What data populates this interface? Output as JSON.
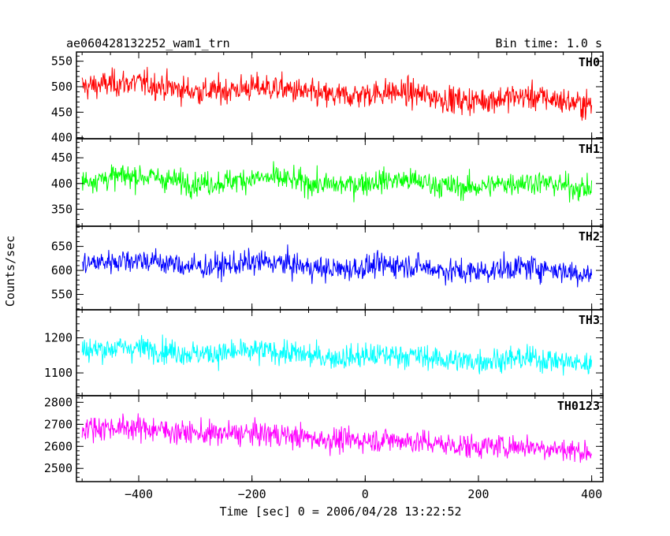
{
  "chart_data": {
    "type": "line",
    "title": "ae060428132252_wam1_trn",
    "subtitle": "Bin time: 1.0 s",
    "xlabel": "Time [sec] 0 = 2006/04/28 13:22:52",
    "ylabel": "Counts/sec",
    "xlim": [
      -510,
      420
    ],
    "x_range": [
      -500,
      400
    ],
    "x_ticks": [
      -400,
      -200,
      0,
      200,
      400
    ],
    "x_tick_labels": [
      "−400",
      "−200",
      "0",
      "200",
      "400"
    ],
    "bin_time": 1.0,
    "grid": false,
    "panels": [
      {
        "name": "TH0",
        "color": "#ff0000",
        "ylim": [
          398,
          568
        ],
        "y_ticks": [
          400,
          450,
          500,
          550
        ],
        "y_tick_labels": [
          "400",
          "450",
          "500",
          "550"
        ],
        "start": 505,
        "end": 470,
        "noise": 25
      },
      {
        "name": "TH1",
        "color": "#00ff00",
        "ylim": [
          317,
          487
        ],
        "y_ticks": [
          350,
          400,
          450
        ],
        "y_tick_labels": [
          "350",
          "400",
          "450"
        ],
        "start": 410,
        "end": 395,
        "noise": 22
      },
      {
        "name": "TH2",
        "color": "#0000ff",
        "ylim": [
          518,
          692
        ],
        "y_ticks": [
          550,
          600,
          650
        ],
        "y_tick_labels": [
          "550",
          "600",
          "650"
        ],
        "start": 618,
        "end": 598,
        "noise": 24
      },
      {
        "name": "TH3",
        "color": "#00ffff",
        "ylim": [
          1035,
          1280
        ],
        "y_ticks": [
          1100,
          1200
        ],
        "y_tick_labels": [
          "1100",
          "1200"
        ],
        "start": 1170,
        "end": 1130,
        "noise": 33
      },
      {
        "name": "TH0123",
        "color": "#ff00ff",
        "ylim": [
          2440,
          2830
        ],
        "y_ticks": [
          2500,
          2600,
          2700,
          2800
        ],
        "y_tick_labels": [
          "2500",
          "2600",
          "2700",
          "2800"
        ],
        "start": 2690,
        "end": 2580,
        "noise": 52
      }
    ]
  }
}
